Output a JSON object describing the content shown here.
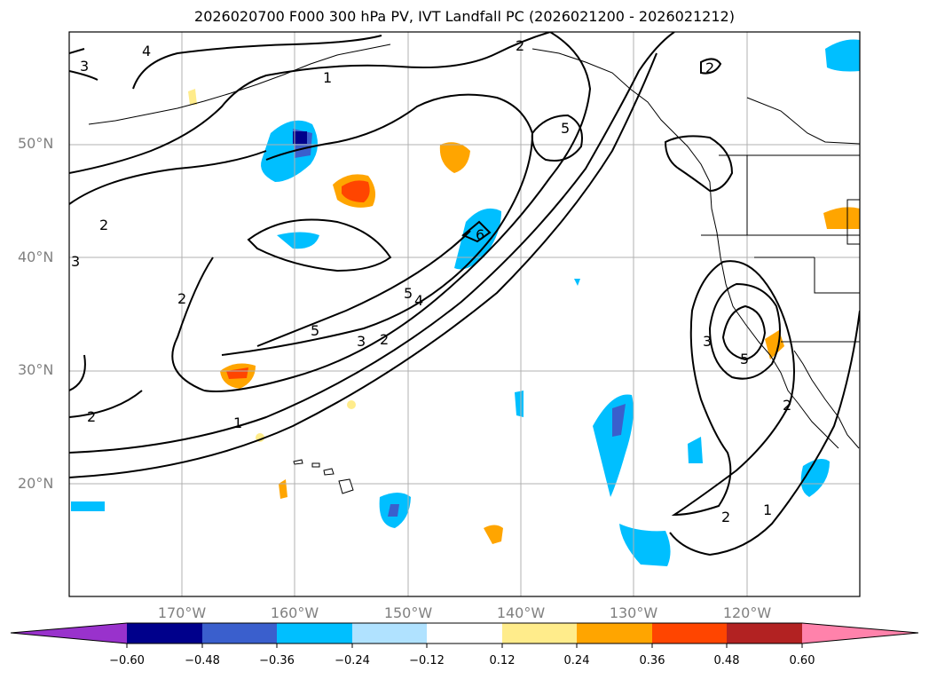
{
  "title": "2026020700 F000 300 hPa PV, IVT Landfall PC (2026021200 - 2026021212)",
  "lat_labels": [
    "50°N",
    "40°N",
    "30°N",
    "20°N"
  ],
  "lon_labels": [
    "170°W",
    "160°W",
    "150°W",
    "140°W",
    "130°W",
    "120°W"
  ],
  "contour_labels": [
    "4",
    "3",
    "1",
    "2",
    "5",
    "2",
    "2",
    "3",
    "6",
    "5",
    "4",
    "5",
    "3",
    "2",
    "2",
    "1",
    "2",
    "3",
    "5",
    "2",
    "1",
    "2"
  ],
  "colorbar": {
    "ticks": [
      "−0.60",
      "−0.48",
      "−0.36",
      "−0.24",
      "−0.12",
      "0.12",
      "0.24",
      "0.36",
      "0.48",
      "0.60"
    ],
    "colors": [
      "#9932cc",
      "#00008b",
      "#3a5fcd",
      "#00bfff",
      "#b0e2ff",
      "#ffffff",
      "#ffec8b",
      "#ffa500",
      "#ff4500",
      "#b22222",
      "#ff82ab"
    ]
  }
}
